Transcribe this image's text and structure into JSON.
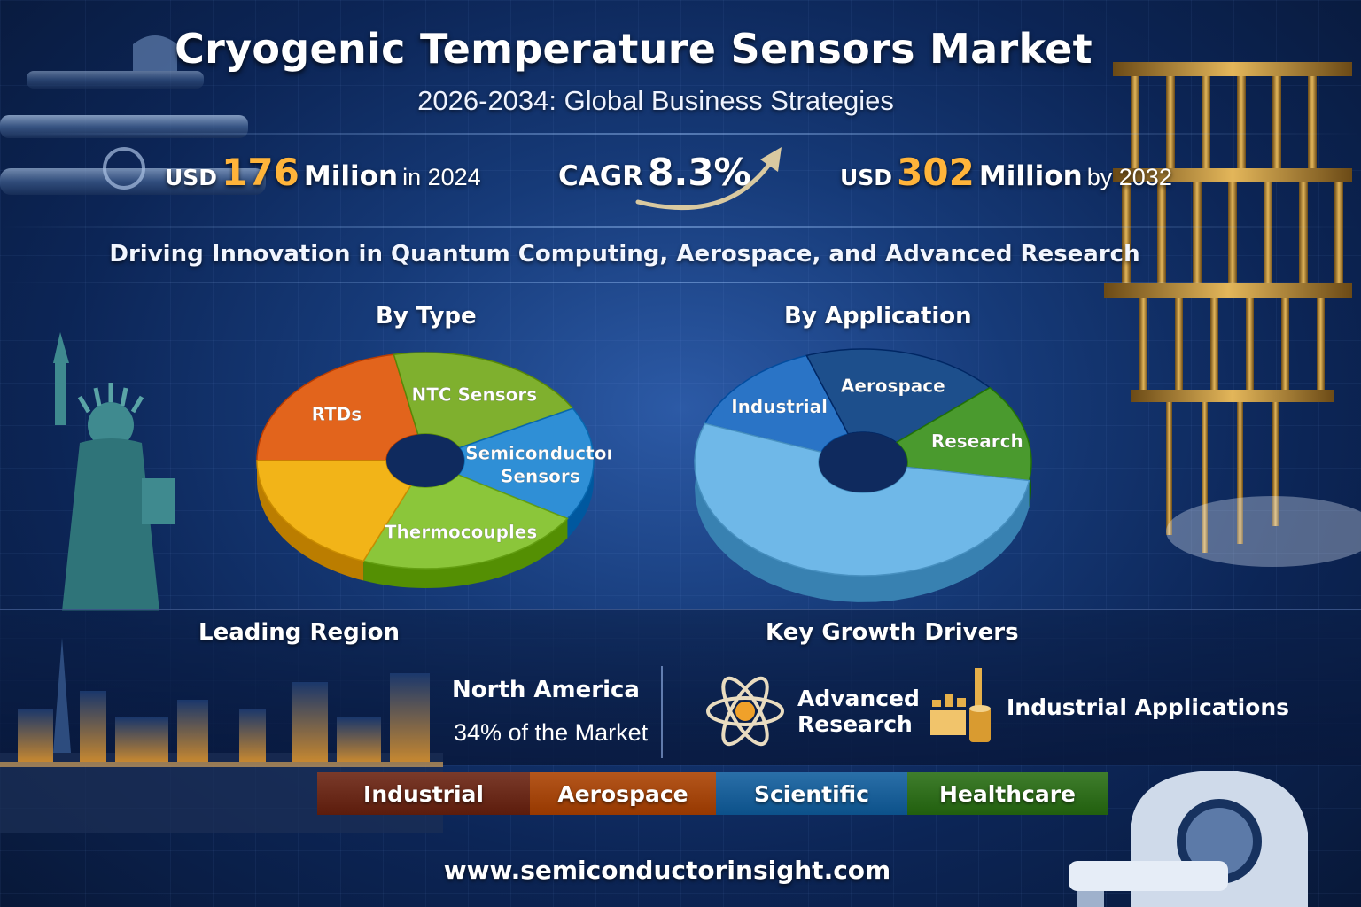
{
  "header": {
    "title": "Cryogenic Temperature Sensors Market",
    "subtitle": "2026-2034: Global Business Strategies"
  },
  "stats": {
    "start": {
      "prefix": "USD",
      "value": "176",
      "unit": "Milion",
      "suffix": "in 2024"
    },
    "cagr": {
      "label": "CAGR",
      "value": "8.3%"
    },
    "end": {
      "prefix": "USD",
      "value": "302",
      "unit": "Million",
      "suffix": "by 2032"
    }
  },
  "tagline": "Driving Innovation in Quantum Computing, Aerospace, and Advanced Research",
  "sections": {
    "by_type": "By Type",
    "by_application": "By Application",
    "leading_region": "Leading Region",
    "key_growth_drivers": "Key Growth Drivers"
  },
  "chart_data": [
    {
      "type": "pie",
      "title": "By Type",
      "donut": true,
      "slices": [
        {
          "label": "RTDs",
          "label_lines": [
            "RTDs"
          ],
          "value": 22,
          "color": "#e2641c"
        },
        {
          "label": "NTC Sensors",
          "label_lines": [
            "NTC Sensors"
          ],
          "value": 20,
          "color": "#7fb02e"
        },
        {
          "label": "Semiconductor Sensors",
          "label_lines": [
            "Semiconductor",
            "Sensors"
          ],
          "value": 17,
          "color": "#2f8fd6"
        },
        {
          "label": "Thermocouples",
          "label_lines": [
            "Thermocouples"
          ],
          "value": 22,
          "color": "#8bc63a"
        },
        {
          "label": "",
          "label_lines": [],
          "value": 19,
          "color": "#f2b418"
        }
      ]
    },
    {
      "type": "pie",
      "title": "By Application",
      "donut": true,
      "slices": [
        {
          "label": "Industrial",
          "label_lines": [
            "Industrial"
          ],
          "value": 14,
          "color": "#2a74c6"
        },
        {
          "label": "Aerospace",
          "label_lines": [
            "Aerospace"
          ],
          "value": 19,
          "color": "#1d4f8c"
        },
        {
          "label": "Research",
          "label_lines": [
            "Research"
          ],
          "value": 14,
          "color": "#4a9a2e"
        },
        {
          "label": "",
          "label_lines": [],
          "value": 53,
          "color": "#6fb8e8"
        }
      ]
    }
  ],
  "region": {
    "name": "North America",
    "share_text": "34% of the Market"
  },
  "drivers": [
    {
      "icon": "atom-icon",
      "lines": [
        "Advanced",
        "Research"
      ]
    },
    {
      "icon": "factory-icon",
      "lines": [
        "Industrial Applications"
      ]
    }
  ],
  "segments": [
    {
      "label": "Industrial",
      "color": "#7a3a2a"
    },
    {
      "label": "Aerospace",
      "color": "#b4561c"
    },
    {
      "label": "Scientific",
      "color": "#2a6fa8"
    },
    {
      "label": "Healthcare",
      "color": "#3f7d2c"
    }
  ],
  "footer": "www.semiconductorinsight.com"
}
